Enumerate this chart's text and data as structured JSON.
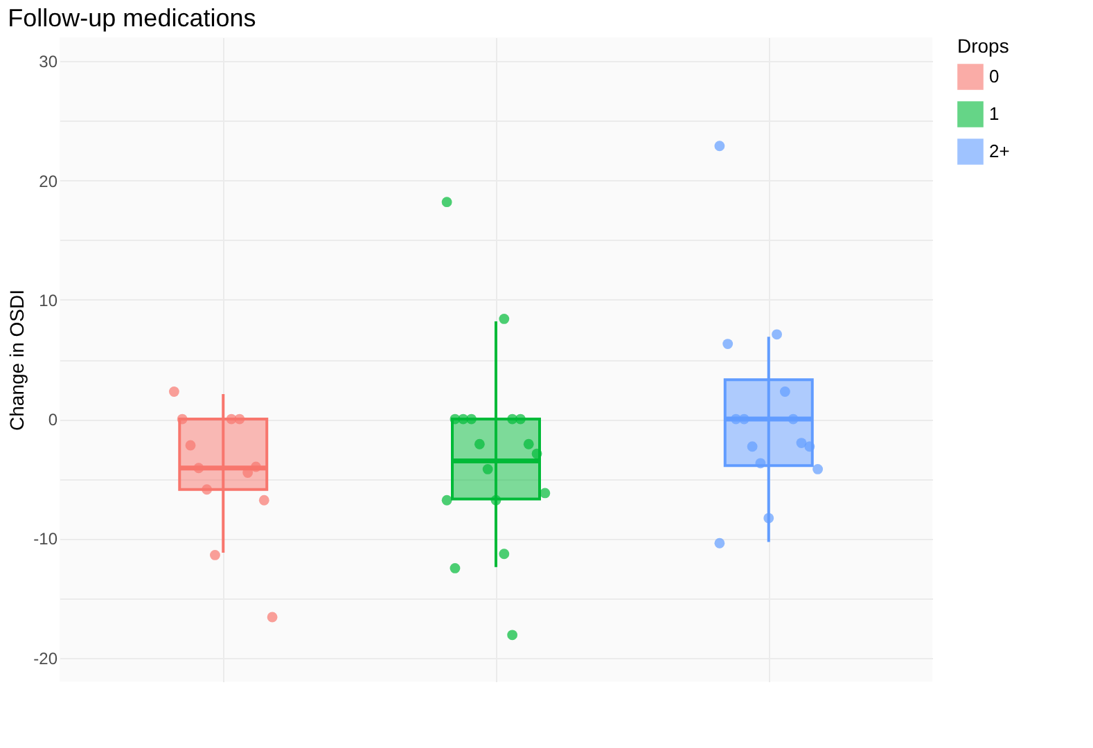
{
  "chart_data": {
    "type": "box",
    "title": "Follow-up medications",
    "ylabel": "Change in OSDI",
    "legend_title": "Drops",
    "legend": "right",
    "grid": true,
    "tick_labels": "y",
    "categories": [
      null,
      null,
      null
    ],
    "ylim": [
      -22,
      32
    ],
    "yticks": [
      -20,
      {
        "value": -15,
        "label": null
      },
      -10,
      {
        "value": -5,
        "label": null
      },
      0,
      {
        "value": 5,
        "label": null
      },
      10,
      {
        "value": 15,
        "label": null
      },
      20,
      {
        "value": 25,
        "label": null
      },
      30
    ],
    "series": [
      {
        "name": "0",
        "color": "#f8766d",
        "boxes": [
          {
            "low": -11.2,
            "q1": -5.9,
            "median": -4.1,
            "q3": 0,
            "high": 2.1
          },
          null,
          null
        ]
      },
      {
        "name": "1",
        "color": "#00ba38",
        "boxes": [
          null,
          {
            "low": -12.4,
            "q1": -6.7,
            "median": -3.5,
            "q3": 0,
            "high": 8.2
          },
          null
        ]
      },
      {
        "name": "2+",
        "color": "#619cff",
        "boxes": [
          null,
          null,
          {
            "low": -10.3,
            "q1": -3.9,
            "median": 0,
            "q3": 3.3,
            "high": 6.9
          }
        ]
      },
      {
        "type": "scatter",
        "colors": [
          "#f8766d",
          "#00ba38",
          "#619cff"
        ],
        "values": [
          2.3,
          18.2,
          22.9
        ]
      },
      {
        "type": "scatter",
        "colors": [
          "#f8766d",
          "#00ba38",
          "#619cff"
        ],
        "values": [
          0,
          8.4,
          7.1
        ]
      },
      {
        "type": "scatter",
        "colors": [
          "#f8766d",
          "#00ba38",
          "#619cff"
        ],
        "values": [
          0,
          0,
          6.3
        ]
      },
      {
        "type": "scatter",
        "colors": [
          "#f8766d",
          "#00ba38",
          "#619cff"
        ],
        "values": [
          0,
          0,
          2.3
        ]
      },
      {
        "type": "scatter",
        "colors": [
          "#f8766d",
          "#00ba38",
          "#619cff"
        ],
        "values": [
          -2.2,
          0,
          0
        ]
      },
      {
        "type": "scatter",
        "colors": [
          "#f8766d",
          "#00ba38",
          "#619cff"
        ],
        "values": [
          -4.5,
          0,
          0
        ]
      },
      {
        "type": "scatter",
        "colors": [
          "#f8766d",
          "#00ba38",
          "#619cff"
        ],
        "values": [
          -4.1,
          0,
          0
        ]
      },
      {
        "type": "scatter",
        "colors": [
          "#f8766d",
          "#00ba38",
          "#619cff"
        ],
        "values": [
          -4.0,
          -2.1,
          -2.0
        ]
      },
      {
        "type": "scatter",
        "colors": [
          "#f8766d",
          "#00ba38",
          "#619cff"
        ],
        "values": [
          -5.9,
          -2.1,
          -2.3
        ]
      },
      {
        "type": "scatter",
        "colors": [
          "#f8766d",
          "#00ba38",
          "#619cff"
        ],
        "values": [
          -6.8,
          -2.9,
          -2.3
        ]
      },
      {
        "type": "scatter",
        "colors": [
          "#f8766d",
          "#00ba38",
          "#619cff"
        ],
        "values": [
          -11.4,
          -4.2,
          -3.7
        ]
      },
      {
        "type": "scatter",
        "colors": [
          "#f8766d",
          "#00ba38",
          "#619cff"
        ],
        "values": [
          -16.6,
          -6.2,
          -4.2
        ]
      },
      {
        "type": "scatter",
        "colors": [
          null,
          "#00ba38",
          "#619cff"
        ],
        "values": [
          null,
          -6.8,
          -8.3
        ]
      },
      {
        "type": "scatter",
        "colors": [
          null,
          "#00ba38",
          "#619cff"
        ],
        "values": [
          null,
          -6.8,
          -10.4
        ]
      },
      {
        "type": "scatter",
        "colors": [
          null,
          "#00ba38",
          null
        ],
        "values": [
          null,
          -11.3,
          null
        ]
      },
      {
        "type": "scatter",
        "colors": [
          null,
          "#00ba38",
          null
        ],
        "values": [
          null,
          -12.5,
          null
        ]
      },
      {
        "type": "scatter",
        "colors": [
          null,
          "#00ba38",
          null
        ],
        "values": [
          null,
          -18.1,
          null
        ]
      }
    ]
  }
}
